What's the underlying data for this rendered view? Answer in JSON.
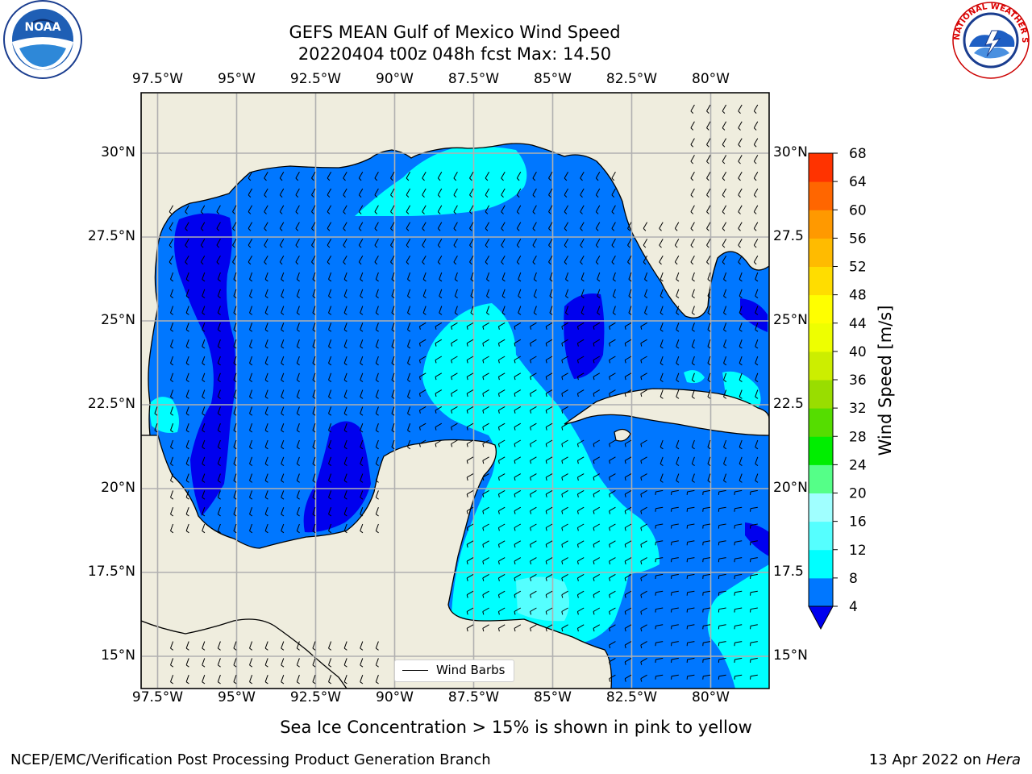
{
  "title": {
    "line1": "GEFS MEAN Gulf of Mexico Wind Speed",
    "line2": "20220404 t00z 048h fcst   Max: 14.50"
  },
  "map": {
    "lon_labels": [
      "97.5°W",
      "95°W",
      "92.5°W",
      "90°W",
      "87.5°W",
      "85°W",
      "82.5°W",
      "80°W"
    ],
    "lat_labels_left": [
      "30°N",
      "27.5°N",
      "25°N",
      "22.5°N",
      "20°N",
      "17.5°N",
      "15°N"
    ],
    "lat_labels_right": [
      "30°N",
      "27.5",
      "25°N",
      "22.5",
      "20°N",
      "17.5",
      "15°N"
    ],
    "lon_values": [
      -97.5,
      -95,
      -92.5,
      -90,
      -87.5,
      -85,
      -82.5,
      -80
    ],
    "lat_values": [
      30,
      27.5,
      25,
      22.5,
      20,
      17.5,
      15
    ],
    "land_color": "#efedde",
    "legend_label": "Wind Barbs"
  },
  "colorbar": {
    "label": "Wind Speed [m/s]",
    "ticks": [
      "4",
      "8",
      "12",
      "16",
      "20",
      "24",
      "28",
      "32",
      "36",
      "40",
      "44",
      "48",
      "52",
      "56",
      "60",
      "64",
      "68"
    ],
    "colors": [
      "#0077ff",
      "#00ffff",
      "#55ffff",
      "#a0ffff",
      "#55ff88",
      "#00ee00",
      "#55dd00",
      "#99dd00",
      "#ccee00",
      "#eeff00",
      "#ffff00",
      "#ffdd00",
      "#ffbb00",
      "#ff9900",
      "#ff6600",
      "#ff3300"
    ],
    "extend_color": "#0000ee"
  },
  "caption": "Sea Ice Concentration > 15% is shown in pink to yellow",
  "footer": {
    "left": "NCEP/EMC/Verification Post Processing Product Generation Branch",
    "right_prefix": "13 Apr 2022 on ",
    "right_italic": "Hera"
  },
  "logos": {
    "left": "noaa-logo",
    "right": "nws-logo"
  }
}
